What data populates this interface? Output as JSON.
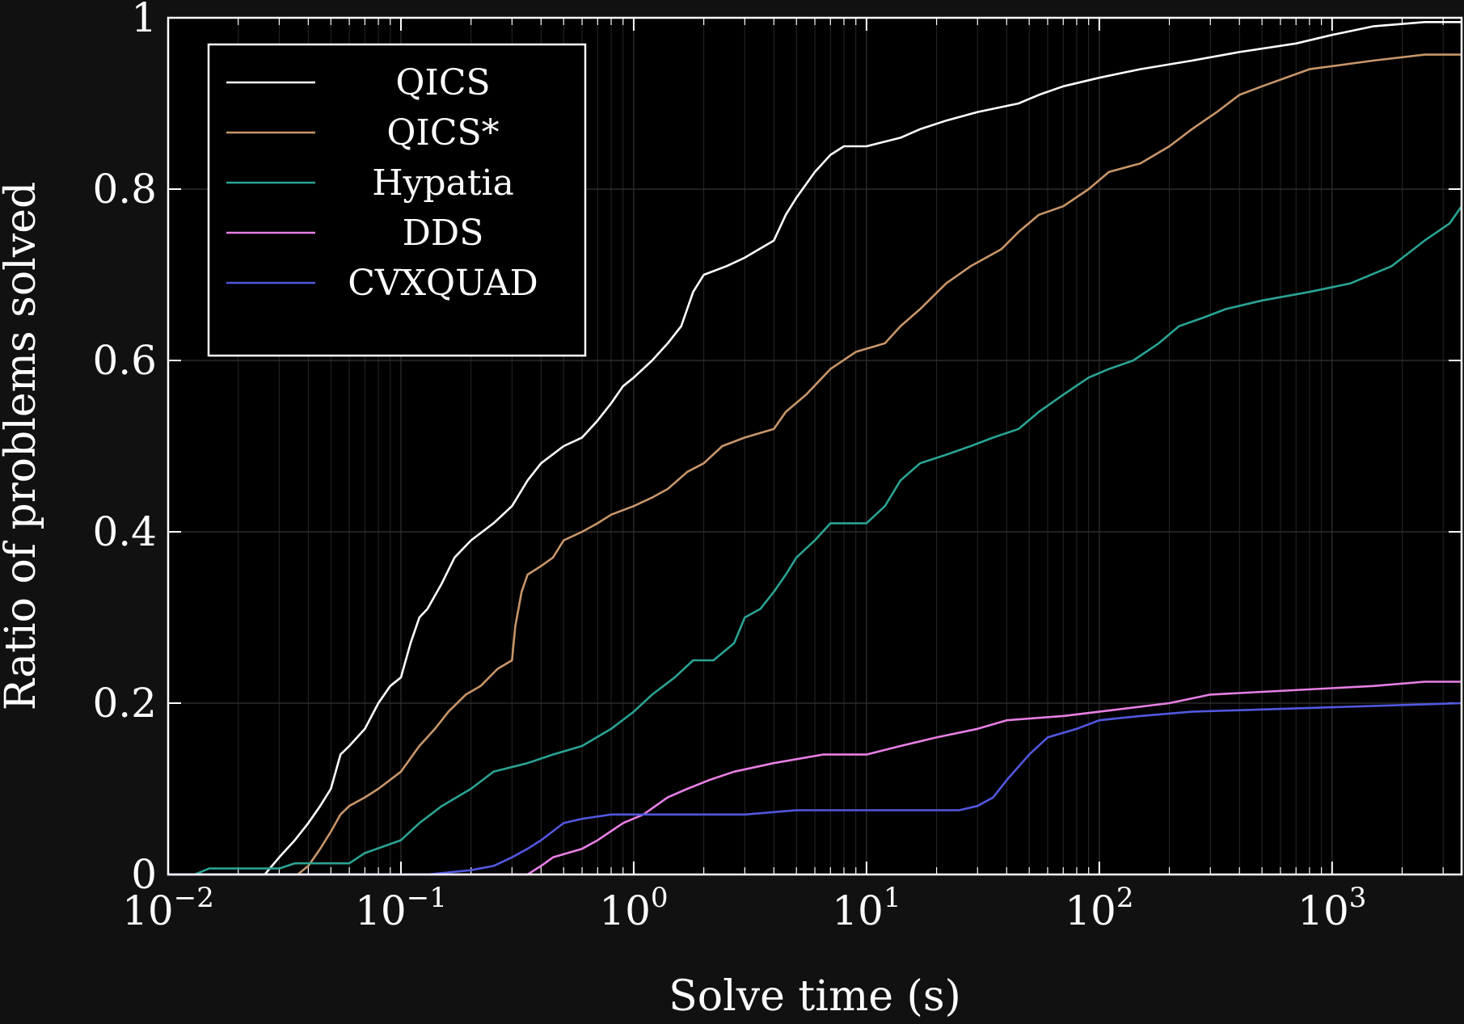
{
  "chart_data": {
    "type": "line",
    "title": "",
    "xlabel": "Solve time (s)",
    "ylabel": "Ratio of problems solved",
    "xscale": "log",
    "xlim": [
      0.01,
      3600
    ],
    "ylim": [
      0,
      1
    ],
    "grid": true,
    "legend_position": "top-left",
    "x_ticks": [
      {
        "value": 0.01,
        "base": "10",
        "exp": "−2"
      },
      {
        "value": 0.1,
        "base": "10",
        "exp": "−1"
      },
      {
        "value": 1,
        "base": "10",
        "exp": "0"
      },
      {
        "value": 10,
        "base": "10",
        "exp": "1"
      },
      {
        "value": 100,
        "base": "10",
        "exp": "2"
      },
      {
        "value": 1000,
        "base": "10",
        "exp": "3"
      }
    ],
    "y_ticks": [
      {
        "value": 0,
        "label": "0"
      },
      {
        "value": 0.2,
        "label": "0.2"
      },
      {
        "value": 0.4,
        "label": "0.4"
      },
      {
        "value": 0.6,
        "label": "0.6"
      },
      {
        "value": 0.8,
        "label": "0.8"
      },
      {
        "value": 1,
        "label": "1"
      }
    ],
    "series": [
      {
        "name": "QICS",
        "color": "#ffffff",
        "points": [
          [
            0.01,
            0
          ],
          [
            0.026,
            0
          ],
          [
            0.03,
            0.02
          ],
          [
            0.035,
            0.04
          ],
          [
            0.04,
            0.06
          ],
          [
            0.045,
            0.08
          ],
          [
            0.05,
            0.1
          ],
          [
            0.055,
            0.14
          ],
          [
            0.06,
            0.15
          ],
          [
            0.07,
            0.17
          ],
          [
            0.08,
            0.2
          ],
          [
            0.09,
            0.22
          ],
          [
            0.1,
            0.23
          ],
          [
            0.11,
            0.27
          ],
          [
            0.12,
            0.3
          ],
          [
            0.13,
            0.31
          ],
          [
            0.15,
            0.34
          ],
          [
            0.17,
            0.37
          ],
          [
            0.2,
            0.39
          ],
          [
            0.25,
            0.41
          ],
          [
            0.3,
            0.43
          ],
          [
            0.35,
            0.46
          ],
          [
            0.4,
            0.48
          ],
          [
            0.5,
            0.5
          ],
          [
            0.6,
            0.51
          ],
          [
            0.7,
            0.53
          ],
          [
            0.8,
            0.55
          ],
          [
            0.9,
            0.57
          ],
          [
            1.0,
            0.58
          ],
          [
            1.2,
            0.6
          ],
          [
            1.4,
            0.62
          ],
          [
            1.6,
            0.64
          ],
          [
            1.8,
            0.68
          ],
          [
            2.0,
            0.7
          ],
          [
            2.5,
            0.71
          ],
          [
            3.0,
            0.72
          ],
          [
            4.0,
            0.74
          ],
          [
            4.5,
            0.77
          ],
          [
            5.0,
            0.79
          ],
          [
            6.0,
            0.82
          ],
          [
            7.0,
            0.84
          ],
          [
            8.0,
            0.85
          ],
          [
            10.0,
            0.85
          ],
          [
            14.0,
            0.86
          ],
          [
            17.0,
            0.87
          ],
          [
            22.0,
            0.88
          ],
          [
            30.0,
            0.89
          ],
          [
            45.0,
            0.9
          ],
          [
            55.0,
            0.91
          ],
          [
            70.0,
            0.92
          ],
          [
            100.0,
            0.93
          ],
          [
            150.0,
            0.94
          ],
          [
            250.0,
            0.95
          ],
          [
            400.0,
            0.96
          ],
          [
            700.0,
            0.97
          ],
          [
            1000.0,
            0.98
          ],
          [
            1500.0,
            0.99
          ],
          [
            2500.0,
            0.995
          ],
          [
            3600.0,
            0.995
          ]
        ]
      },
      {
        "name": "QICS*",
        "color": "#c8966a",
        "points": [
          [
            0.01,
            0
          ],
          [
            0.036,
            0
          ],
          [
            0.04,
            0.01
          ],
          [
            0.045,
            0.03
          ],
          [
            0.05,
            0.05
          ],
          [
            0.055,
            0.07
          ],
          [
            0.06,
            0.08
          ],
          [
            0.07,
            0.09
          ],
          [
            0.08,
            0.1
          ],
          [
            0.1,
            0.12
          ],
          [
            0.12,
            0.15
          ],
          [
            0.14,
            0.17
          ],
          [
            0.16,
            0.19
          ],
          [
            0.19,
            0.21
          ],
          [
            0.22,
            0.22
          ],
          [
            0.26,
            0.24
          ],
          [
            0.3,
            0.25
          ],
          [
            0.31,
            0.29
          ],
          [
            0.33,
            0.33
          ],
          [
            0.35,
            0.35
          ],
          [
            0.4,
            0.36
          ],
          [
            0.45,
            0.37
          ],
          [
            0.5,
            0.39
          ],
          [
            0.6,
            0.4
          ],
          [
            0.7,
            0.41
          ],
          [
            0.8,
            0.42
          ],
          [
            1.0,
            0.43
          ],
          [
            1.2,
            0.44
          ],
          [
            1.4,
            0.45
          ],
          [
            1.7,
            0.47
          ],
          [
            2.0,
            0.48
          ],
          [
            2.4,
            0.5
          ],
          [
            3.0,
            0.51
          ],
          [
            4.0,
            0.52
          ],
          [
            4.5,
            0.54
          ],
          [
            5.5,
            0.56
          ],
          [
            7.0,
            0.59
          ],
          [
            9.0,
            0.61
          ],
          [
            12.0,
            0.62
          ],
          [
            14.0,
            0.64
          ],
          [
            17.0,
            0.66
          ],
          [
            22.0,
            0.69
          ],
          [
            28.0,
            0.71
          ],
          [
            38.0,
            0.73
          ],
          [
            45.0,
            0.75
          ],
          [
            55.0,
            0.77
          ],
          [
            70.0,
            0.78
          ],
          [
            90.0,
            0.8
          ],
          [
            110.0,
            0.82
          ],
          [
            150.0,
            0.83
          ],
          [
            200.0,
            0.85
          ],
          [
            250.0,
            0.87
          ],
          [
            320.0,
            0.89
          ],
          [
            400.0,
            0.91
          ],
          [
            500.0,
            0.92
          ],
          [
            800.0,
            0.94
          ],
          [
            1500.0,
            0.95
          ],
          [
            2500.0,
            0.957
          ],
          [
            3600.0,
            0.957
          ]
        ]
      },
      {
        "name": "Hypatia",
        "color": "#2aa394",
        "points": [
          [
            0.01,
            0
          ],
          [
            0.013,
            0
          ],
          [
            0.015,
            0.007
          ],
          [
            0.03,
            0.007
          ],
          [
            0.035,
            0.013
          ],
          [
            0.06,
            0.013
          ],
          [
            0.07,
            0.025
          ],
          [
            0.1,
            0.04
          ],
          [
            0.12,
            0.06
          ],
          [
            0.15,
            0.08
          ],
          [
            0.2,
            0.1
          ],
          [
            0.25,
            0.12
          ],
          [
            0.35,
            0.13
          ],
          [
            0.45,
            0.14
          ],
          [
            0.6,
            0.15
          ],
          [
            0.8,
            0.17
          ],
          [
            1.0,
            0.19
          ],
          [
            1.2,
            0.21
          ],
          [
            1.5,
            0.23
          ],
          [
            1.8,
            0.25
          ],
          [
            2.2,
            0.25
          ],
          [
            2.7,
            0.27
          ],
          [
            3.0,
            0.3
          ],
          [
            3.5,
            0.31
          ],
          [
            4.0,
            0.33
          ],
          [
            4.5,
            0.35
          ],
          [
            5.0,
            0.37
          ],
          [
            6.0,
            0.39
          ],
          [
            7.0,
            0.41
          ],
          [
            10.0,
            0.41
          ],
          [
            12.0,
            0.43
          ],
          [
            14.0,
            0.46
          ],
          [
            17.0,
            0.48
          ],
          [
            22.0,
            0.49
          ],
          [
            28.0,
            0.5
          ],
          [
            35.0,
            0.51
          ],
          [
            45.0,
            0.52
          ],
          [
            55.0,
            0.54
          ],
          [
            70.0,
            0.56
          ],
          [
            90.0,
            0.58
          ],
          [
            110.0,
            0.59
          ],
          [
            140.0,
            0.6
          ],
          [
            180.0,
            0.62
          ],
          [
            220.0,
            0.64
          ],
          [
            280.0,
            0.65
          ],
          [
            350.0,
            0.66
          ],
          [
            500.0,
            0.67
          ],
          [
            800.0,
            0.68
          ],
          [
            1200.0,
            0.69
          ],
          [
            1800.0,
            0.71
          ],
          [
            2500.0,
            0.74
          ],
          [
            3200.0,
            0.76
          ],
          [
            3600.0,
            0.78
          ]
        ]
      },
      {
        "name": "DDS",
        "color": "#e87fe4",
        "points": [
          [
            0.01,
            0
          ],
          [
            0.35,
            0
          ],
          [
            0.4,
            0.01
          ],
          [
            0.45,
            0.02
          ],
          [
            0.6,
            0.03
          ],
          [
            0.7,
            0.04
          ],
          [
            0.9,
            0.06
          ],
          [
            1.1,
            0.07
          ],
          [
            1.4,
            0.09
          ],
          [
            1.7,
            0.1
          ],
          [
            2.1,
            0.11
          ],
          [
            2.7,
            0.12
          ],
          [
            4.0,
            0.13
          ],
          [
            6.5,
            0.14
          ],
          [
            10.0,
            0.14
          ],
          [
            14.0,
            0.15
          ],
          [
            20.0,
            0.16
          ],
          [
            30.0,
            0.17
          ],
          [
            40.0,
            0.18
          ],
          [
            70.0,
            0.185
          ],
          [
            100.0,
            0.19
          ],
          [
            200.0,
            0.2
          ],
          [
            300.0,
            0.21
          ],
          [
            1500.0,
            0.22
          ],
          [
            2500.0,
            0.225
          ],
          [
            3600.0,
            0.225
          ]
        ]
      },
      {
        "name": "CVXQUAD",
        "color": "#5258e0",
        "points": [
          [
            0.01,
            0
          ],
          [
            0.13,
            0
          ],
          [
            0.2,
            0.005
          ],
          [
            0.25,
            0.01
          ],
          [
            0.3,
            0.02
          ],
          [
            0.35,
            0.03
          ],
          [
            0.4,
            0.04
          ],
          [
            0.5,
            0.06
          ],
          [
            0.6,
            0.065
          ],
          [
            0.8,
            0.07
          ],
          [
            1.5,
            0.07
          ],
          [
            3.0,
            0.07
          ],
          [
            5.0,
            0.075
          ],
          [
            10.0,
            0.075
          ],
          [
            25.0,
            0.075
          ],
          [
            30.0,
            0.08
          ],
          [
            35.0,
            0.09
          ],
          [
            40.0,
            0.11
          ],
          [
            50.0,
            0.14
          ],
          [
            60.0,
            0.16
          ],
          [
            80.0,
            0.17
          ],
          [
            100.0,
            0.18
          ],
          [
            150.0,
            0.185
          ],
          [
            250.0,
            0.19
          ],
          [
            3600.0,
            0.2
          ]
        ]
      }
    ]
  }
}
